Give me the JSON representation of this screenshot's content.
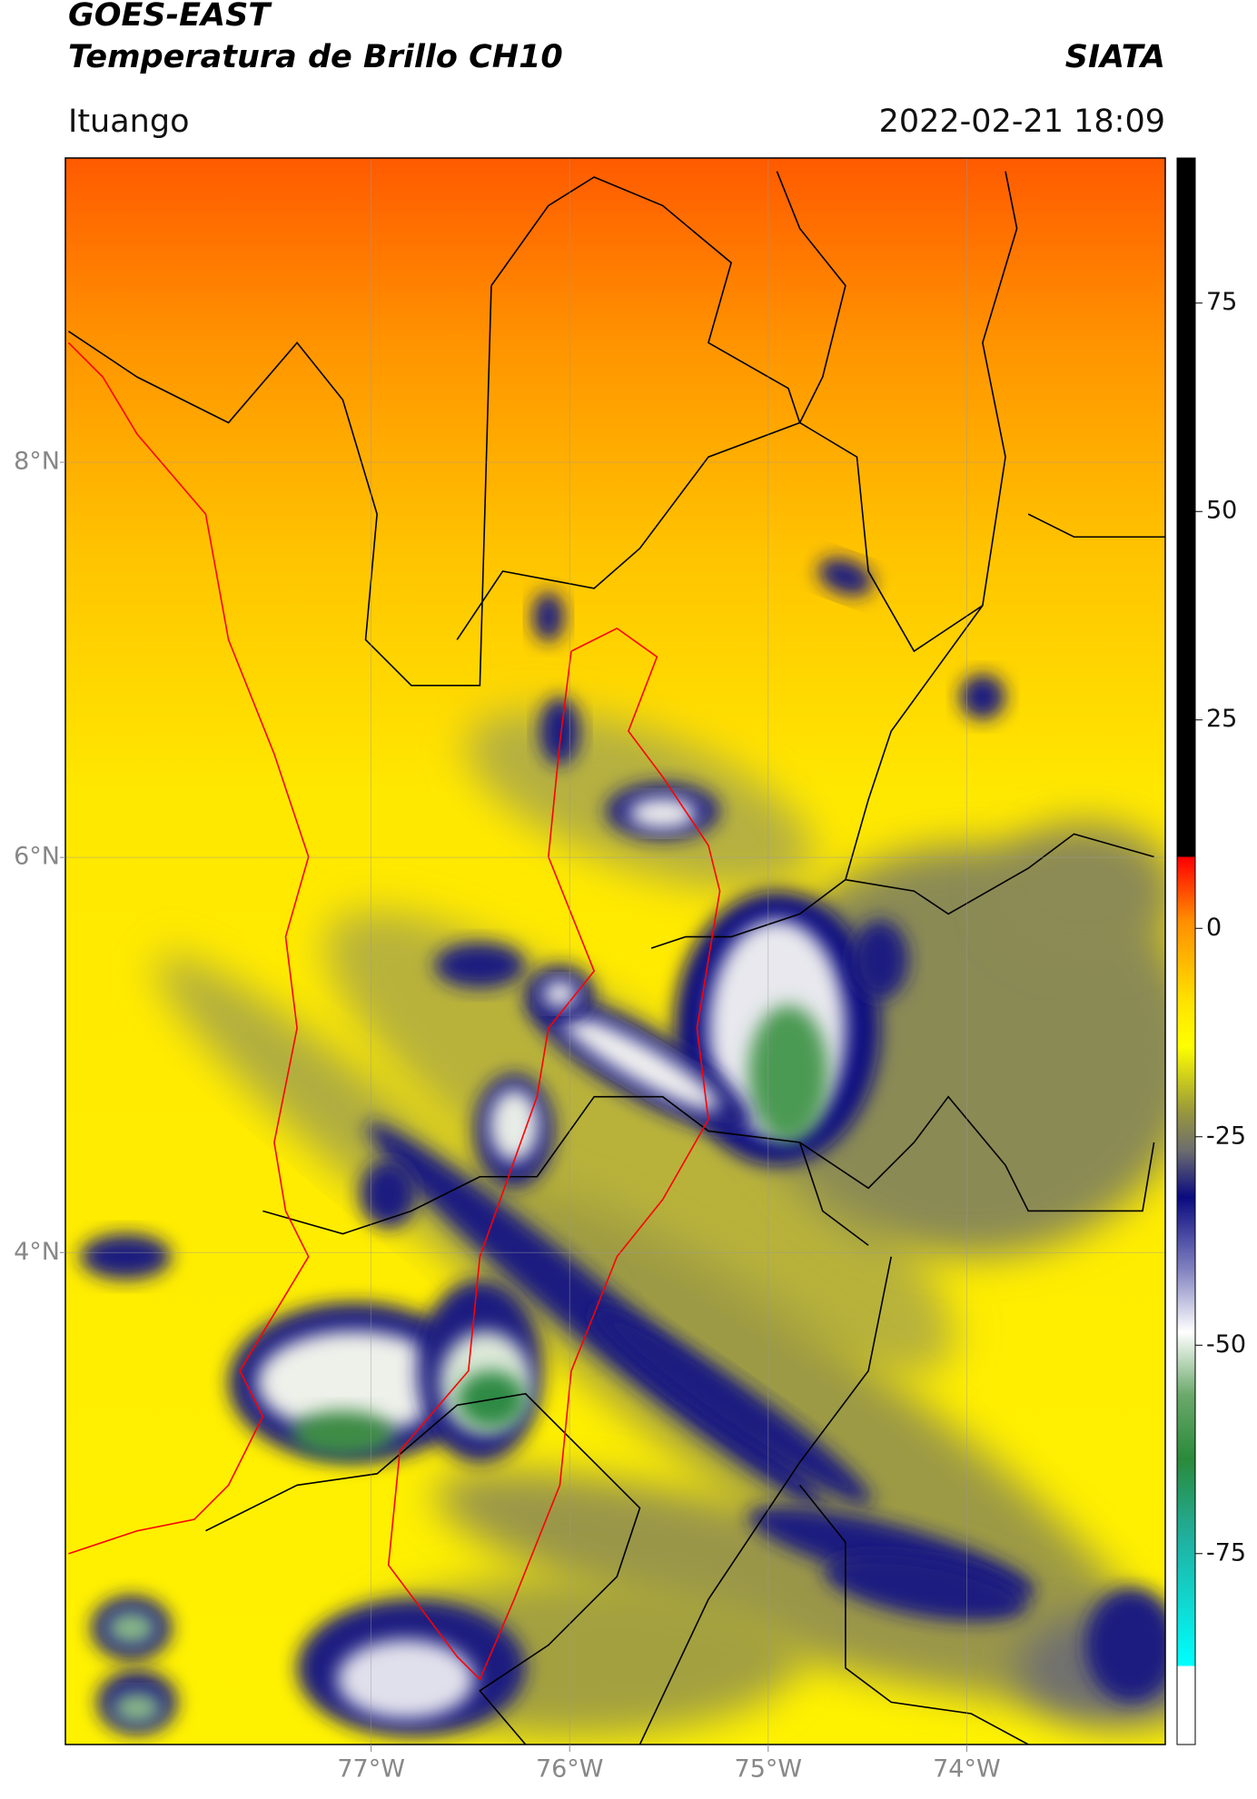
{
  "chart_data": {
    "type": "map",
    "title": "GOES-EAST",
    "subtitle": "Temperatura de Brillo CH10",
    "source": "SIATA",
    "location": "Ituango",
    "timestamp": "2022-02-21 18:09",
    "xlim": [
      -78.54,
      -73.0
    ],
    "ylim": [
      1.51,
      9.54
    ],
    "xticks": [
      {
        "value": -77,
        "label": "77°W"
      },
      {
        "value": -76,
        "label": "76°W"
      },
      {
        "value": -75,
        "label": "75°W"
      },
      {
        "value": -74,
        "label": "74°W"
      }
    ],
    "yticks": [
      {
        "value": 4,
        "label": "4°N"
      },
      {
        "value": 6,
        "label": "6°N"
      },
      {
        "value": 8,
        "label": "8°N"
      }
    ],
    "grid": true,
    "colorbar": {
      "lim": [
        -97.9,
        92.4
      ],
      "ticks": [
        -75,
        -50,
        -25,
        0,
        25,
        50,
        75
      ]
    }
  }
}
